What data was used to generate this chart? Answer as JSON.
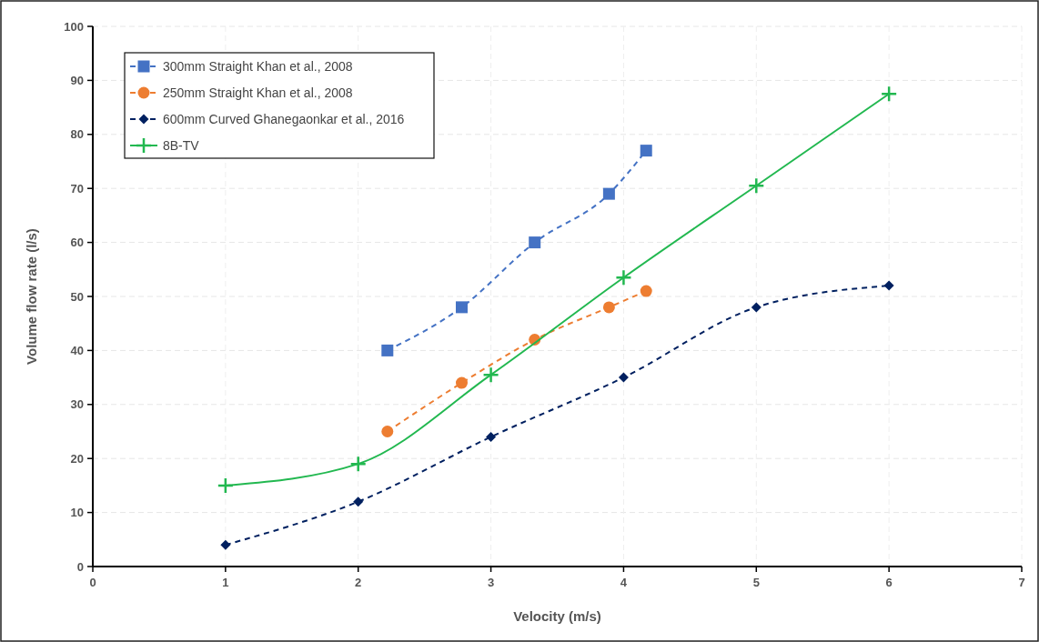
{
  "chart_data": {
    "type": "line",
    "xlabel": "Velocity (m/s)",
    "ylabel": "Volume flow rate (l/s)",
    "xlim": [
      0,
      7
    ],
    "xticks": [
      0,
      1,
      2,
      3,
      4,
      5,
      6,
      7
    ],
    "ylim": [
      0,
      100
    ],
    "yticks": [
      0,
      10,
      20,
      30,
      40,
      50,
      60,
      70,
      80,
      90,
      100
    ],
    "grid": true,
    "legend": "top left",
    "series": [
      {
        "name": "300mm Straight Khan et al., 2008",
        "color": "#4472c4",
        "marker": "square",
        "line_style": "dashed",
        "x": [
          2.22,
          2.78,
          3.33,
          3.89,
          4.17
        ],
        "values": [
          40,
          48,
          60,
          69,
          77
        ]
      },
      {
        "name": "250mm Straight Khan et al., 2008",
        "color": "#ed7d31",
        "marker": "circle",
        "line_style": "dashed",
        "x": [
          2.22,
          2.78,
          3.33,
          3.89,
          4.17
        ],
        "values": [
          25,
          34,
          42,
          48,
          51
        ]
      },
      {
        "name": "600mm Curved Ghanegaonkar et al., 2016",
        "color": "#002060",
        "marker": "diamond",
        "line_style": "dashed",
        "x": [
          1,
          2,
          3,
          4,
          5,
          6
        ],
        "values": [
          4,
          12,
          24,
          35,
          48,
          52
        ]
      },
      {
        "name": "8B-TV",
        "color": "#22b850",
        "marker": "cross",
        "line_style": "solid",
        "x": [
          1,
          2,
          3,
          4,
          5,
          6
        ],
        "values": [
          15,
          19,
          35.5,
          53.5,
          70.5,
          87.5
        ]
      }
    ]
  }
}
